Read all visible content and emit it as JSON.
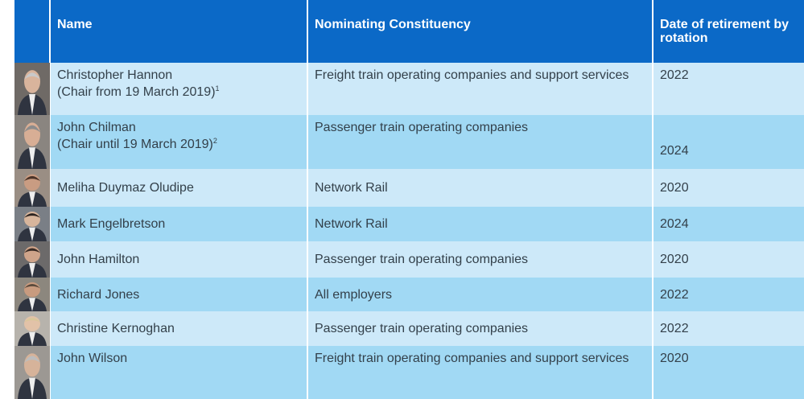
{
  "table": {
    "headers": [
      "Name",
      "Nominating Constituency",
      "Date of retirement by rotation"
    ],
    "rows": [
      {
        "name": "Christopher Hannon",
        "note": "(Chair from 19 March 2019)",
        "note_ref": "1",
        "constituency": "Freight train operating companies and support services",
        "date": "2022"
      },
      {
        "name": "John Chilman",
        "note": "(Chair until 19 March 2019)",
        "note_ref": "2",
        "constituency": "Passenger train operating companies",
        "date": "2024"
      },
      {
        "name": "Meliha Duymaz Oludipe",
        "constituency": "Network Rail",
        "date": "2020"
      },
      {
        "name": "Mark Engelbretson",
        "constituency": "Network Rail",
        "date": "2024"
      },
      {
        "name": "John Hamilton",
        "constituency": "Passenger train operating companies",
        "date": "2020"
      },
      {
        "name": "Richard Jones",
        "constituency": "All employers",
        "date": "2022"
      },
      {
        "name": "Christine Kernoghan",
        "constituency": "Passenger train operating companies",
        "date": "2022"
      },
      {
        "name": "John Wilson",
        "constituency": "Freight train operating companies and support services",
        "date": "2020"
      }
    ]
  }
}
